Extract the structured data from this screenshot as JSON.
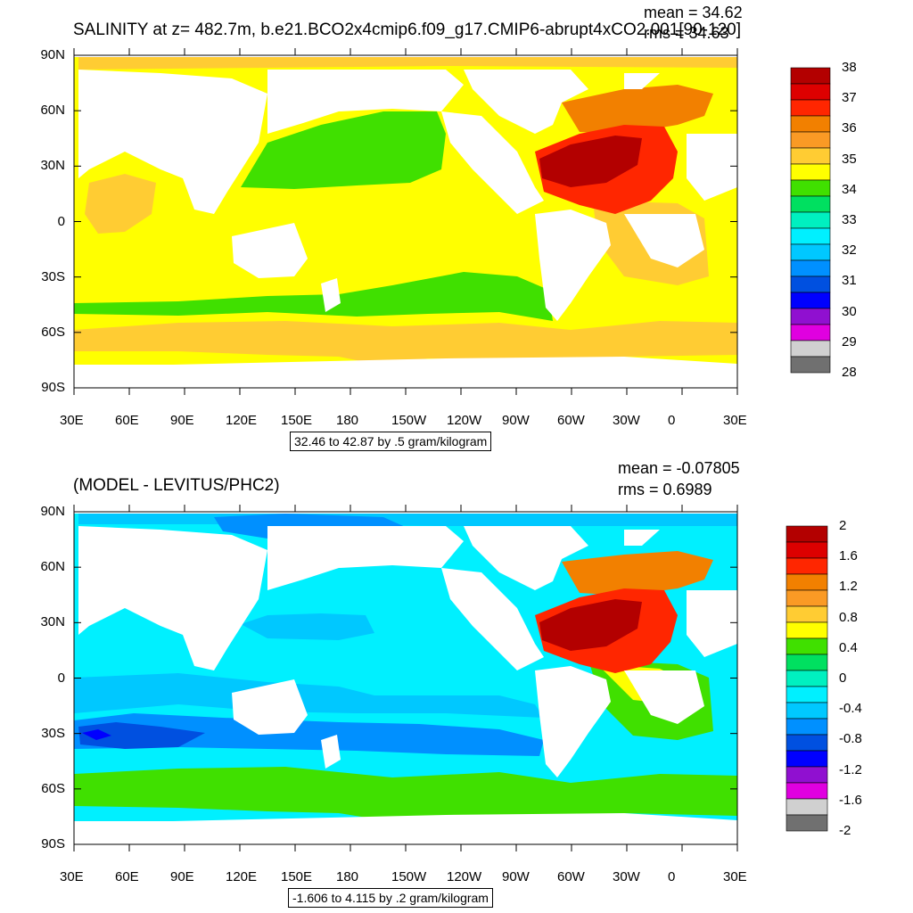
{
  "top": {
    "title": "SALINITY at z= 482.7m, b.e21.BCO2x4cmip6.f09_g17.CMIP6-abrupt4xCO2.001[90-120]",
    "mean": "mean = 34.62",
    "rms": "rms = 34.63",
    "range": "32.46 to 42.87 by .5 gram/kilogram",
    "lat_labels": [
      "90N",
      "60N",
      "30N",
      "0",
      "30S",
      "60S",
      "90S"
    ],
    "lon_labels": [
      "30E",
      "60E",
      "90E",
      "120E",
      "150E",
      "180",
      "150W",
      "120W",
      "90W",
      "60W",
      "30W",
      "0",
      "30E"
    ],
    "colorbar": {
      "labels": [
        "38",
        "37",
        "36",
        "35",
        "34",
        "33",
        "32",
        "31",
        "30",
        "29",
        "28"
      ],
      "colors": [
        "#b30000",
        "#dd0000",
        "#ff2600",
        "#f28000",
        "#fa9a25",
        "#ffcc33",
        "#ffff00",
        "#40e000",
        "#00e060",
        "#00f0c0",
        "#00f0ff",
        "#00c8ff",
        "#0090ff",
        "#0050e0",
        "#0000ff",
        "#9010d0",
        "#e000e0",
        "#d0d0d0",
        "#707070"
      ]
    }
  },
  "bottom": {
    "title": "(MODEL - LEVITUS/PHC2)",
    "mean": "mean = -0.07805",
    "rms": "rms = 0.6989",
    "range": "-1.606 to 4.115 by .2 gram/kilogram",
    "lat_labels": [
      "90N",
      "60N",
      "30N",
      "0",
      "30S",
      "60S",
      "90S"
    ],
    "lon_labels": [
      "30E",
      "60E",
      "90E",
      "120E",
      "150E",
      "180",
      "150W",
      "120W",
      "90W",
      "60W",
      "30W",
      "0",
      "30E"
    ],
    "colorbar": {
      "labels": [
        "2",
        "1.6",
        "1.2",
        "0.8",
        "0.4",
        "0",
        "-0.4",
        "-0.8",
        "-1.2",
        "-1.6",
        "-2"
      ],
      "colors": [
        "#b30000",
        "#dd0000",
        "#ff2600",
        "#f28000",
        "#fa9a25",
        "#ffcc33",
        "#ffff00",
        "#40e000",
        "#00e060",
        "#00f0c0",
        "#00f0ff",
        "#00c8ff",
        "#0090ff",
        "#0050e0",
        "#0000ff",
        "#9010d0",
        "#e000e0",
        "#d0d0d0",
        "#707070"
      ]
    }
  }
}
